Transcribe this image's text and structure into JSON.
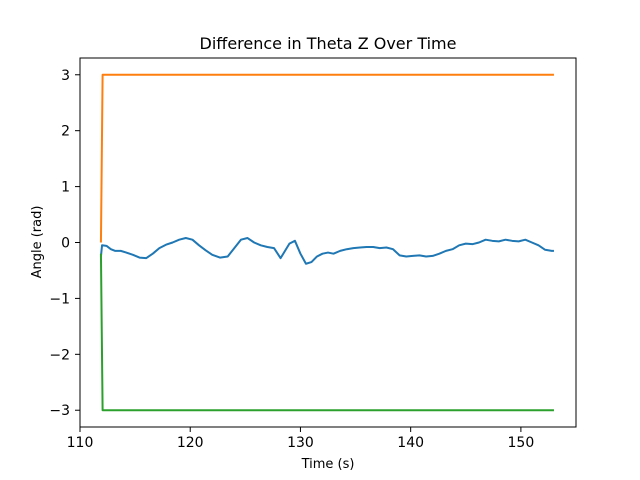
{
  "chart_data": {
    "type": "line",
    "title": "Difference in Theta Z Over Time",
    "xlabel": "Time (s)",
    "ylabel": "Angle (rad)",
    "xlim": [
      110.0,
      155.0
    ],
    "ylim": [
      -3.3,
      3.3
    ],
    "xticks": [
      110,
      120,
      130,
      140,
      150
    ],
    "yticks": [
      3,
      2,
      1,
      0,
      -1,
      -2,
      -3
    ],
    "ytick_labels": [
      "3",
      "2",
      "1",
      "0",
      "−1",
      "−2",
      "−3"
    ],
    "grid": false,
    "series": [
      {
        "color": "#1f77b4",
        "x": [
          111.9,
          112.0,
          112.4,
          112.8,
          113.2,
          113.7,
          114.2,
          114.8,
          115.4,
          116.0,
          116.6,
          117.2,
          117.8,
          118.4,
          119.0,
          119.6,
          120.2,
          120.8,
          121.4,
          122.0,
          122.7,
          123.4,
          124.0,
          124.6,
          125.2,
          125.8,
          126.4,
          127.0,
          127.6,
          128.2,
          128.6,
          129.0,
          129.5,
          130.0,
          130.5,
          131.0,
          131.5,
          132.0,
          132.5,
          133.0,
          133.6,
          134.2,
          134.8,
          135.4,
          136.0,
          136.6,
          137.2,
          137.8,
          138.4,
          139.0,
          139.6,
          140.2,
          140.8,
          141.4,
          142.0,
          142.6,
          143.2,
          143.8,
          144.4,
          145.0,
          145.6,
          146.2,
          146.8,
          147.4,
          148.0,
          148.6,
          149.2,
          149.8,
          150.4,
          151.0,
          151.6,
          152.2,
          152.8,
          153.0
        ],
        "y": [
          -0.25,
          -0.05,
          -0.06,
          -0.12,
          -0.15,
          -0.15,
          -0.18,
          -0.22,
          -0.27,
          -0.28,
          -0.2,
          -0.1,
          -0.04,
          0.0,
          0.05,
          0.08,
          0.05,
          -0.05,
          -0.14,
          -0.22,
          -0.27,
          -0.25,
          -0.1,
          0.05,
          0.08,
          0.0,
          -0.05,
          -0.08,
          -0.1,
          -0.28,
          -0.15,
          -0.02,
          0.03,
          -0.2,
          -0.38,
          -0.35,
          -0.25,
          -0.2,
          -0.18,
          -0.2,
          -0.15,
          -0.12,
          -0.1,
          -0.09,
          -0.08,
          -0.08,
          -0.1,
          -0.09,
          -0.12,
          -0.23,
          -0.25,
          -0.24,
          -0.23,
          -0.25,
          -0.24,
          -0.2,
          -0.15,
          -0.12,
          -0.05,
          -0.02,
          -0.03,
          0.0,
          0.05,
          0.03,
          0.02,
          0.05,
          0.03,
          0.02,
          0.05,
          0.0,
          -0.05,
          -0.13,
          -0.15,
          -0.15
        ]
      },
      {
        "color": "#ff7f0e",
        "x": [
          111.9,
          112.05,
          113.0,
          120.0,
          130.0,
          140.0,
          150.0,
          153.0
        ],
        "y": [
          0.0,
          3.0,
          3.0,
          3.0,
          3.0,
          3.0,
          3.0,
          3.0
        ]
      },
      {
        "color": "#2ca02c",
        "x": [
          111.9,
          112.05,
          113.0,
          120.0,
          130.0,
          140.0,
          150.0,
          153.0
        ],
        "y": [
          -0.2,
          -3.0,
          -3.0,
          -3.0,
          -3.0,
          -3.0,
          -3.0,
          -3.0
        ]
      }
    ]
  }
}
